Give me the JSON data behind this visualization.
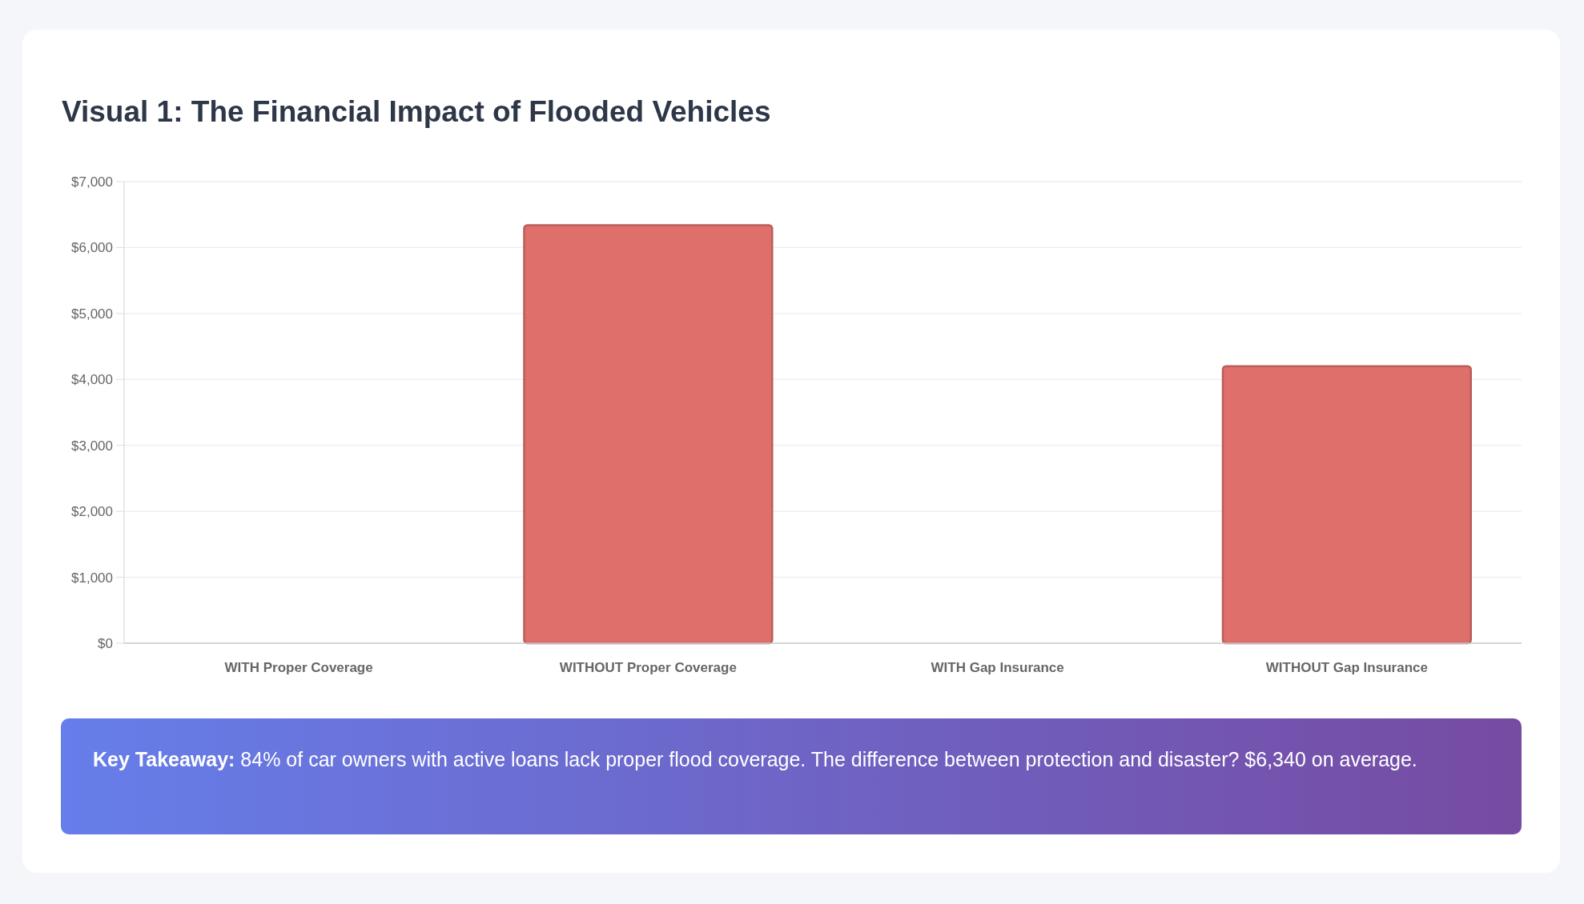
{
  "chart_data": {
    "type": "bar",
    "title": "Visual 1: The Financial Impact of Flooded Vehicles",
    "categories": [
      "WITH Proper Coverage",
      "WITHOUT Proper Coverage",
      "WITH Gap Insurance",
      "WITHOUT Gap Insurance"
    ],
    "values": [
      0,
      6340,
      0,
      4200
    ],
    "color": "#df6f6a",
    "ylim": [
      0,
      7000
    ],
    "yticks": [
      {
        "value": 0,
        "label": "$0"
      },
      {
        "value": 1000,
        "label": "$1,000"
      },
      {
        "value": 2000,
        "label": "$2,000"
      },
      {
        "value": 3000,
        "label": "$3,000"
      },
      {
        "value": 4000,
        "label": "$4,000"
      },
      {
        "value": 5000,
        "label": "$5,000"
      },
      {
        "value": 6000,
        "label": "$6,000"
      },
      {
        "value": 7000,
        "label": "$7,000"
      }
    ],
    "grid": "y",
    "annotations": [
      "Key Takeaway: 84% of car owners with active loans lack proper flood coverage. The difference between protection and disaster? $6,340 on average."
    ]
  }
}
